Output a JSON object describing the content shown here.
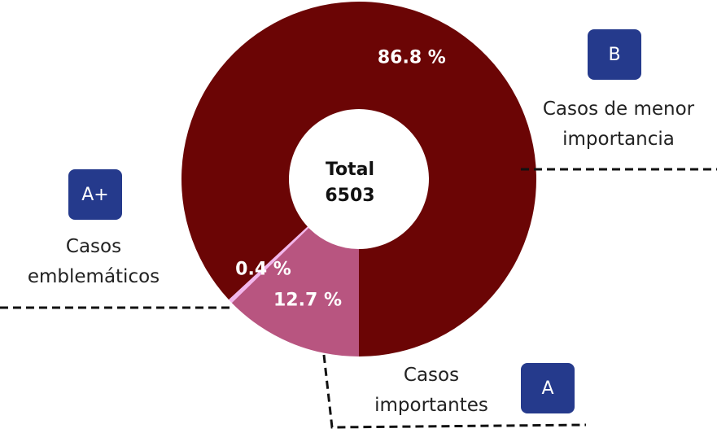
{
  "chart_data": {
    "type": "donut",
    "categories": [
      "Casos importantes",
      "Casos emblemáticos",
      "Casos de menor importancia"
    ],
    "badges": [
      "A",
      "A+",
      "B"
    ],
    "values": [
      12.7,
      0.4,
      86.8
    ],
    "value_labels": [
      "12.7 %",
      "0.4 %",
      "86.8 %"
    ],
    "colors": [
      "#b85580",
      "#f2b6ec",
      "#6b0505"
    ],
    "center_label": "Total",
    "center_value": 6503
  }
}
